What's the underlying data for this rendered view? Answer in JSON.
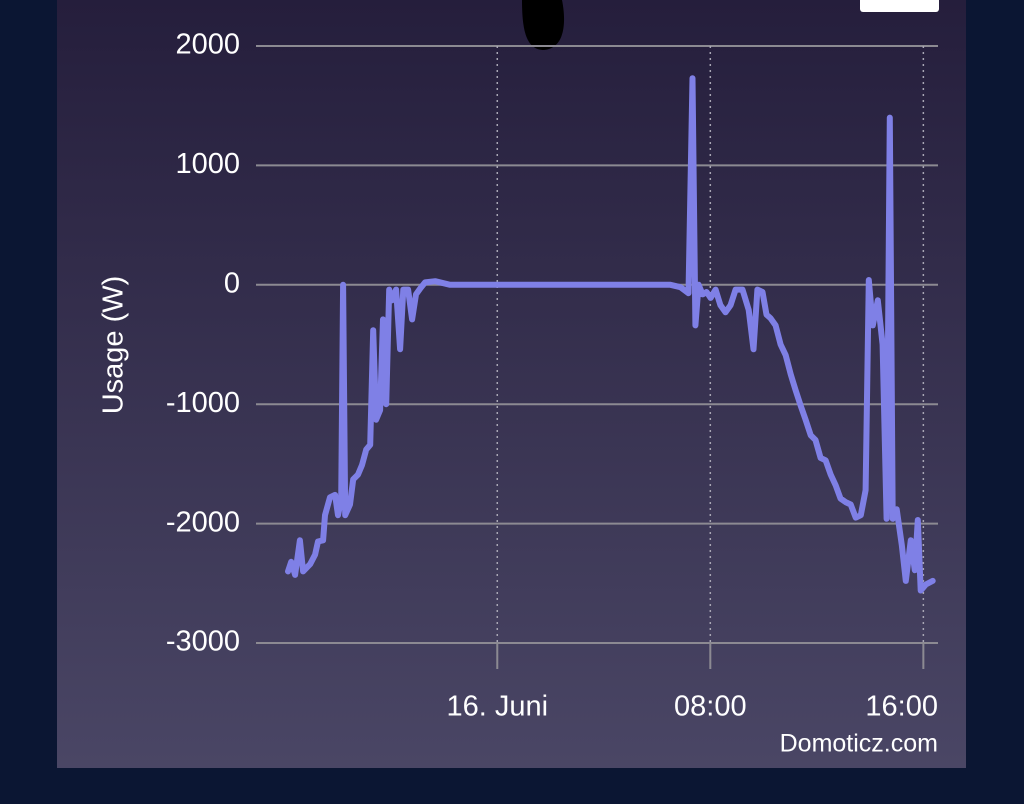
{
  "chart_data": {
    "type": "line",
    "y_label": "Usage (W)",
    "credit": "Domoticz.com",
    "x": [
      -7.86,
      -7.74,
      -7.59,
      -7.41,
      -7.29,
      -7.03,
      -6.84,
      -6.73,
      -6.54,
      -6.47,
      -6.28,
      -6.09,
      -5.98,
      -5.86,
      -5.79,
      -5.71,
      -5.53,
      -5.41,
      -5.23,
      -5.08,
      -4.92,
      -4.77,
      -4.66,
      -4.55,
      -4.4,
      -4.29,
      -4.17,
      -4.06,
      -3.95,
      -3.8,
      -3.65,
      -3.53,
      -3.35,
      -3.2,
      -3.05,
      -2.89,
      -2.71,
      -2.33,
      -1.77,
      -0.64,
      0.86,
      3.12,
      5.38,
      6.5,
      6.88,
      7.18,
      7.33,
      7.44,
      7.56,
      7.71,
      7.86,
      8.01,
      8.2,
      8.38,
      8.57,
      8.76,
      8.95,
      9.21,
      9.44,
      9.62,
      9.77,
      9.96,
      10.11,
      10.26,
      10.45,
      10.64,
      10.83,
      11.02,
      11.2,
      11.39,
      11.58,
      11.77,
      11.95,
      12.14,
      12.33,
      12.52,
      12.71,
      12.89,
      13.08,
      13.27,
      13.46,
      13.65,
      13.83,
      13.95,
      14.1,
      14.29,
      14.47,
      14.62,
      14.74,
      14.85,
      15.0,
      15.19,
      15.34,
      15.53,
      15.68,
      15.79,
      15.9,
      16.09,
      16.35
    ],
    "series": [
      {
        "color": "#7f80e6",
        "values": [
          -2400,
          -2320,
          -2430,
          -2140,
          -2400,
          -2340,
          -2260,
          -2150,
          -2140,
          -1930,
          -1780,
          -1760,
          -1930,
          -1800,
          0,
          -1930,
          -1840,
          -1630,
          -1590,
          -1510,
          -1380,
          -1340,
          -380,
          -1130,
          -1050,
          -290,
          -1000,
          -40,
          -130,
          -40,
          -540,
          -40,
          -40,
          -290,
          -80,
          -30,
          20,
          30,
          0,
          0,
          0,
          0,
          0,
          0,
          -20,
          -70,
          1730,
          -340,
          0,
          -80,
          -60,
          -110,
          -40,
          -170,
          -230,
          -170,
          -40,
          -40,
          -210,
          -540,
          -40,
          -60,
          -250,
          -280,
          -340,
          -500,
          -590,
          -750,
          -880,
          -1010,
          -1130,
          -1260,
          -1300,
          -1450,
          -1470,
          -1590,
          -1680,
          -1790,
          -1820,
          -1840,
          -1950,
          -1930,
          -1720,
          40,
          -340,
          -130,
          -500,
          -1960,
          1400,
          -1960,
          -1880,
          -2180,
          -2480,
          -2140,
          -2390,
          -1970,
          -2560,
          -2510,
          -2480
        ]
      }
    ],
    "xlim": [
      -9.06,
      16.55
    ],
    "xticks": [
      {
        "value": 0,
        "label": "16. Juni"
      },
      {
        "value": 8,
        "label": "08:00"
      },
      {
        "value": 16,
        "label": "16:00"
      }
    ],
    "ylim": [
      -3000,
      2000
    ],
    "yticks": [
      -3000,
      -2000,
      -1000,
      0,
      1000,
      2000
    ],
    "grid": true
  }
}
